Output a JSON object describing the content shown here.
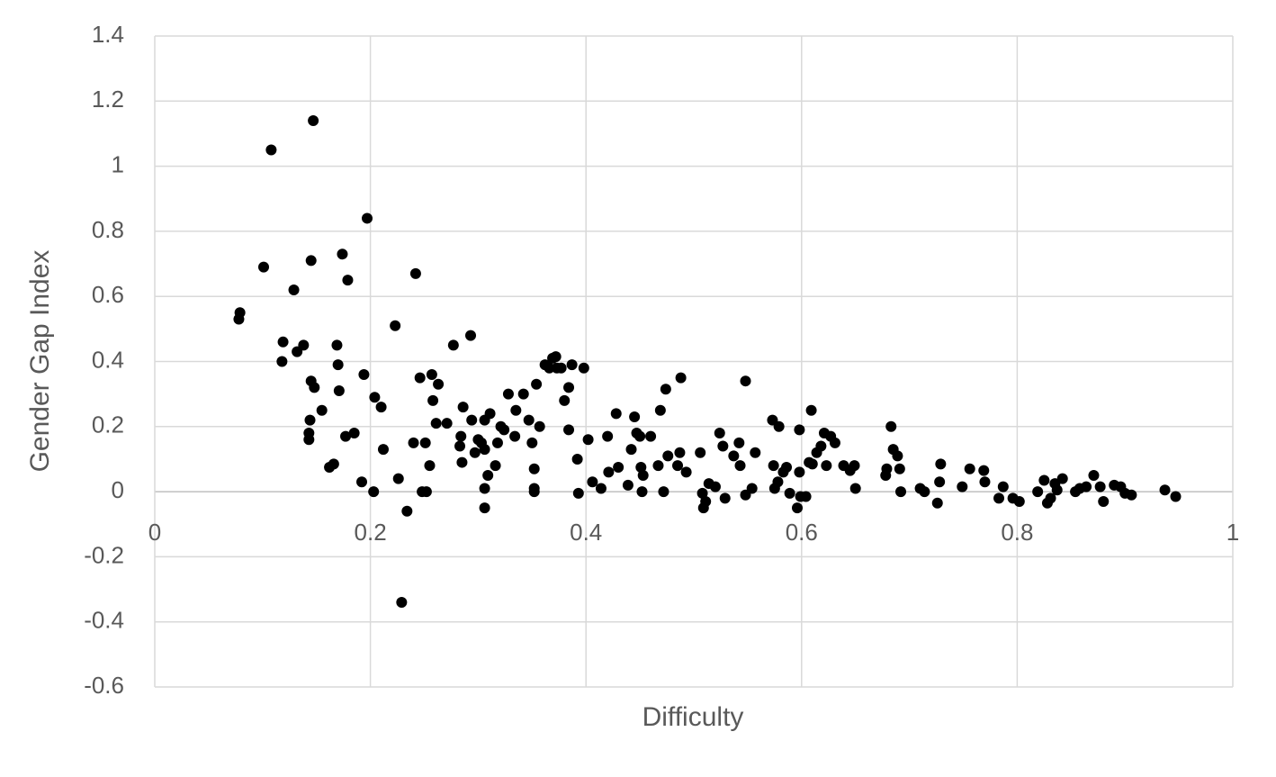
{
  "chart_data": {
    "type": "scatter",
    "x_label": "Difficulty",
    "y_label": "Gender Gap Index",
    "color": "#000000",
    "grid": true,
    "xlim": [
      0,
      1
    ],
    "xticks": [
      0,
      0.2,
      0.4,
      0.6,
      0.8,
      1
    ],
    "ylim": [
      -0.6,
      1.4
    ],
    "yticks": [
      -0.6,
      -0.4,
      -0.2,
      0,
      0.2,
      0.4,
      0.6,
      0.8,
      1,
      1.2,
      1.4
    ],
    "x": [
      0.078,
      0.079,
      0.101,
      0.108,
      0.129,
      0.119,
      0.118,
      0.132,
      0.138,
      0.143,
      0.143,
      0.145,
      0.147,
      0.145,
      0.148,
      0.144,
      0.155,
      0.162,
      0.166,
      0.169,
      0.17,
      0.171,
      0.174,
      0.179,
      0.177,
      0.185,
      0.192,
      0.194,
      0.197,
      0.204,
      0.21,
      0.203,
      0.212,
      0.223,
      0.226,
      0.229,
      0.234,
      0.24,
      0.242,
      0.246,
      0.248,
      0.252,
      0.251,
      0.255,
      0.257,
      0.258,
      0.261,
      0.263,
      0.271,
      0.277,
      0.283,
      0.284,
      0.285,
      0.286,
      0.293,
      0.294,
      0.297,
      0.3,
      0.303,
      0.306,
      0.306,
      0.306,
      0.306,
      0.309,
      0.311,
      0.316,
      0.318,
      0.321,
      0.324,
      0.328,
      0.334,
      0.335,
      0.342,
      0.347,
      0.35,
      0.352,
      0.352,
      0.352,
      0.354,
      0.357,
      0.362,
      0.366,
      0.369,
      0.372,
      0.377,
      0.373,
      0.38,
      0.384,
      0.387,
      0.384,
      0.392,
      0.393,
      0.398,
      0.402,
      0.406,
      0.414,
      0.42,
      0.421,
      0.428,
      0.43,
      0.439,
      0.442,
      0.445,
      0.447,
      0.45,
      0.451,
      0.452,
      0.453,
      0.46,
      0.467,
      0.469,
      0.472,
      0.474,
      0.476,
      0.485,
      0.487,
      0.488,
      0.493,
      0.506,
      0.508,
      0.509,
      0.511,
      0.514,
      0.52,
      0.524,
      0.527,
      0.529,
      0.537,
      0.542,
      0.543,
      0.548,
      0.548,
      0.554,
      0.557,
      0.573,
      0.579,
      0.574,
      0.575,
      0.578,
      0.583,
      0.586,
      0.589,
      0.596,
      0.599,
      0.598,
      0.598,
      0.604,
      0.609,
      0.607,
      0.61,
      0.614,
      0.618,
      0.621,
      0.627,
      0.623,
      0.631,
      0.639,
      0.645,
      0.65,
      0.649,
      0.678,
      0.679,
      0.683,
      0.685,
      0.689,
      0.691,
      0.692,
      0.71,
      0.714,
      0.726,
      0.729,
      0.728,
      0.749,
      0.756,
      0.769,
      0.77,
      0.783,
      0.787,
      0.796,
      0.802,
      0.819,
      0.825,
      0.828,
      0.831,
      0.835,
      0.837,
      0.842,
      0.854,
      0.858,
      0.864,
      0.871,
      0.877,
      0.88,
      0.89,
      0.896,
      0.9,
      0.906,
      0.937,
      0.947
    ],
    "values": [
      0.53,
      0.55,
      0.69,
      1.05,
      0.62,
      0.46,
      0.4,
      0.43,
      0.45,
      0.18,
      0.16,
      0.71,
      1.14,
      0.34,
      0.32,
      0.22,
      0.25,
      0.075,
      0.085,
      0.45,
      0.39,
      0.31,
      0.73,
      0.65,
      0.17,
      0.18,
      0.03,
      0.36,
      0.84,
      0.29,
      0.26,
      0.0,
      0.13,
      0.51,
      0.04,
      -0.34,
      -0.06,
      0.15,
      0.67,
      0.35,
      0.0,
      0.0,
      0.15,
      0.08,
      0.36,
      0.28,
      0.21,
      0.33,
      0.21,
      0.45,
      0.14,
      0.17,
      0.09,
      0.26,
      0.48,
      0.22,
      0.12,
      0.16,
      0.15,
      0.22,
      0.13,
      0.01,
      -0.05,
      0.05,
      0.24,
      0.08,
      0.15,
      0.2,
      0.19,
      0.3,
      0.17,
      0.25,
      0.3,
      0.22,
      0.15,
      0.07,
      0.01,
      0.0,
      0.33,
      0.2,
      0.39,
      0.38,
      0.41,
      0.415,
      0.38,
      0.38,
      0.28,
      0.32,
      0.39,
      0.19,
      0.1,
      -0.005,
      0.38,
      0.16,
      0.03,
      0.01,
      0.17,
      0.06,
      0.24,
      0.075,
      0.02,
      0.13,
      0.23,
      0.18,
      0.17,
      0.075,
      0.0,
      0.05,
      0.17,
      0.08,
      0.25,
      0.0,
      0.315,
      0.11,
      0.08,
      0.12,
      0.35,
      0.06,
      0.12,
      -0.005,
      -0.05,
      -0.03,
      0.025,
      0.015,
      0.18,
      0.14,
      -0.02,
      0.11,
      0.15,
      0.08,
      0.34,
      -0.01,
      0.01,
      0.12,
      0.22,
      0.2,
      0.08,
      0.01,
      0.03,
      0.06,
      0.075,
      -0.005,
      -0.05,
      -0.015,
      0.19,
      0.06,
      -0.015,
      0.25,
      0.09,
      0.085,
      0.12,
      0.14,
      0.18,
      0.17,
      0.08,
      0.15,
      0.08,
      0.065,
      0.01,
      0.08,
      0.05,
      0.07,
      0.2,
      0.13,
      0.11,
      0.07,
      0.0,
      0.01,
      0.0,
      -0.035,
      0.085,
      0.03,
      0.015,
      0.07,
      0.065,
      0.03,
      -0.02,
      0.015,
      -0.02,
      -0.03,
      0.0,
      0.035,
      -0.035,
      -0.02,
      0.025,
      0.005,
      0.04,
      0.0,
      0.01,
      0.015,
      0.05,
      0.015,
      -0.03,
      0.02,
      0.015,
      -0.005,
      -0.01,
      0.005,
      -0.015
    ]
  }
}
